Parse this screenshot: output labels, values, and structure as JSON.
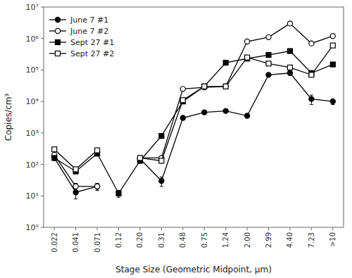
{
  "chart_data": {
    "type": "line",
    "x_label": "Stage Size (Geometric Midpoint, μm)",
    "y_label": "Copies/cm³",
    "categories": [
      "0.022",
      "0.041",
      "0.071",
      "0.12",
      "0.20",
      "0.31",
      "0.48",
      "0.75",
      "1.24",
      "2.00",
      "2.99",
      "4.40",
      "7.23",
      ">10"
    ],
    "series": [
      {
        "name": "June 7 #1",
        "color": "#000000",
        "marker": "circle",
        "line_style": "solid",
        "values": [
          160,
          13,
          20,
          null,
          150,
          30,
          3000,
          4500,
          5000,
          3500,
          70000,
          80000,
          12000,
          10000
        ],
        "error_minus": [
          20,
          5,
          5,
          null,
          20,
          10,
          400,
          500,
          500,
          300,
          5000,
          6000,
          4000,
          2000
        ],
        "error_plus": [
          20,
          5,
          5,
          null,
          20,
          10,
          400,
          500,
          500,
          300,
          5000,
          6000,
          4000,
          2000
        ]
      },
      {
        "name": "June 7 #2",
        "color": "#000000",
        "marker": "circle-open",
        "line_style": "solid",
        "values": [
          200,
          20,
          20,
          null,
          160,
          160,
          25000,
          28000,
          30000,
          800000,
          1100000,
          3000000,
          700000,
          1200000
        ],
        "error_minus": [
          20,
          5,
          5,
          null,
          20,
          20,
          2000,
          2000,
          2000,
          50000,
          80000,
          200000,
          50000,
          80000
        ],
        "error_plus": [
          20,
          5,
          5,
          null,
          20,
          20,
          2000,
          2000,
          2000,
          50000,
          80000,
          200000,
          50000,
          80000
        ]
      },
      {
        "name": "Sept 27 #1",
        "color": "#000000",
        "marker": "square",
        "line_style": "solid",
        "values": [
          160,
          60,
          220,
          12,
          130,
          800,
          10000,
          30000,
          170000,
          230000,
          300000,
          400000,
          80000,
          150000
        ],
        "error_minus": [
          20,
          10,
          30,
          3,
          20,
          100,
          1000,
          3000,
          15000,
          20000,
          25000,
          40000,
          8000,
          15000
        ],
        "error_plus": [
          20,
          10,
          30,
          3,
          20,
          100,
          1000,
          3000,
          15000,
          20000,
          25000,
          40000,
          8000,
          15000
        ]
      },
      {
        "name": "Sept 27 #2",
        "color": "#000000",
        "marker": "square-open",
        "line_style": "solid",
        "values": [
          300,
          70,
          280,
          null,
          160,
          130,
          11000,
          30000,
          30000,
          250000,
          160000,
          120000,
          70000,
          600000
        ],
        "error_minus": [
          30,
          10,
          30,
          null,
          20,
          20,
          1000,
          3000,
          2000,
          20000,
          15000,
          10000,
          7000,
          50000
        ],
        "error_plus": [
          30,
          10,
          30,
          null,
          20,
          20,
          1000,
          3000,
          2000,
          20000,
          15000,
          10000,
          7000,
          50000
        ]
      }
    ],
    "log": "y",
    "ylim": [
      1,
      10000000
    ],
    "yticks": [
      {
        "value": 1,
        "label": "10⁰"
      },
      {
        "value": 10,
        "label": "10¹"
      },
      {
        "value": 100,
        "label": "10²"
      },
      {
        "value": 1000,
        "label": "10³"
      },
      {
        "value": 10000,
        "label": "10⁴"
      },
      {
        "value": 100000,
        "label": "10⁵"
      },
      {
        "value": 1000000,
        "label": "10⁶"
      },
      {
        "value": 10000000,
        "label": "10⁷"
      }
    ],
    "grid": false,
    "legend": "upper left"
  }
}
